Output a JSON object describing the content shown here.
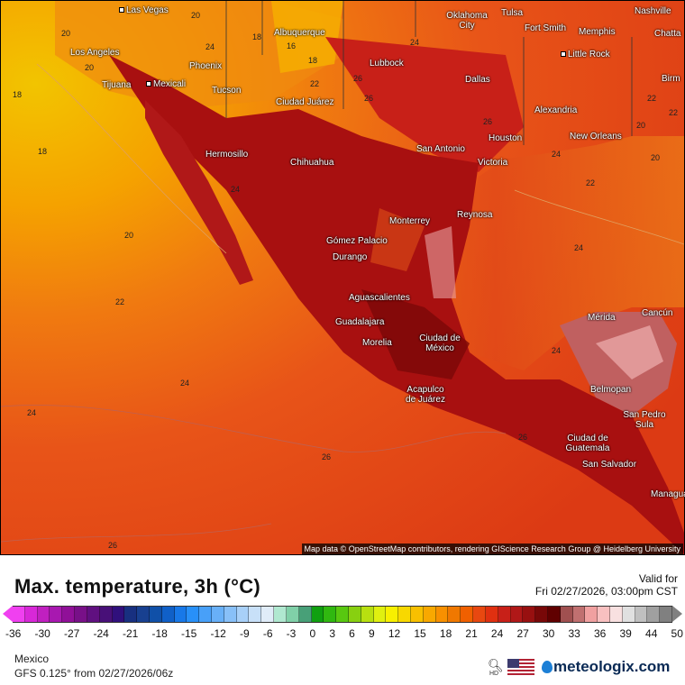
{
  "map": {
    "attribution": "Map data © OpenStreetMap contributors, rendering GIScience Research Group @ Heidelberg University",
    "cities": [
      "Las Vegas",
      "Albuquerque",
      "Oklahoma City",
      "Tulsa",
      "Nashville",
      "Chatta",
      "Fort Smith",
      "Memphis",
      "Los Angeles",
      "Phoenix",
      "Lubbock",
      "Little Rock",
      "Birm",
      "Tijuana",
      "Mexicali",
      "Tucson",
      "Dallas",
      "Ciudad Juárez",
      "Alexandria",
      "Hermosillo",
      "Chihuahua",
      "San Antonio",
      "Houston",
      "New Orleans",
      "Victoria",
      "Monterrey",
      "Reynosa",
      "Gómez Palacio",
      "Durango",
      "Aguascalientes",
      "Mérida",
      "Cancún",
      "Guadalajara",
      "Morelia",
      "Ciudad de México",
      "Belmopan",
      "Acapulco de Juárez",
      "San Pedro Sula",
      "Ciudad de Guatemala",
      "San Salvador",
      "Managua"
    ],
    "isotherm_labels": [
      "20",
      "18",
      "16",
      "18",
      "20",
      "24",
      "26",
      "22",
      "24",
      "20",
      "18",
      "18",
      "20",
      "22",
      "24",
      "22",
      "20",
      "24",
      "24",
      "26",
      "26",
      "26",
      "22",
      "24",
      "20",
      "22",
      "24",
      "24",
      "26",
      "26"
    ]
  },
  "legend": {
    "title": "Max. temperature, 3h (°C)",
    "valid_label": "Valid for",
    "valid_time": "Fri 02/27/2026, 03:00pm CST",
    "ticks": [
      "-36",
      "-30",
      "-27",
      "-24",
      "-21",
      "-18",
      "-15",
      "-12",
      "-9",
      "-6",
      "-3",
      "0",
      "3",
      "6",
      "9",
      "12",
      "15",
      "18",
      "21",
      "24",
      "27",
      "30",
      "33",
      "36",
      "39",
      "44",
      "50"
    ],
    "colors": [
      "#f040f0",
      "#d828d8",
      "#c020c0",
      "#a818b0",
      "#901098",
      "#781088",
      "#601080",
      "#481078",
      "#30107c",
      "#183080",
      "#184090",
      "#1050a8",
      "#1060c8",
      "#1878e8",
      "#2890f8",
      "#48a0f8",
      "#68b0f8",
      "#88c0f8",
      "#a8d0f8",
      "#c8e0f8",
      "#e0ecf8",
      "#b0e8d0",
      "#80d0a8",
      "#48a078",
      "#10a010",
      "#30b810",
      "#58c810",
      "#88d010",
      "#b8e010",
      "#e0f010",
      "#f8f000",
      "#f8d800",
      "#f8c000",
      "#f8a800",
      "#f89000",
      "#f07800",
      "#f06000",
      "#e84810",
      "#e03010",
      "#c82018",
      "#b01818",
      "#981010",
      "#780808",
      "#600000",
      "#a05050",
      "#c07070",
      "#f0a0a0",
      "#f8c0c0",
      "#f8e0e0",
      "#e0e0e0",
      "#c0c0c0",
      "#a0a0a0",
      "#808080"
    ],
    "arrow_low": "#f040f0",
    "arrow_high": "#808080"
  },
  "footer": {
    "region": "Mexico",
    "model": "GFS 0.125° from  02/27/2026/06z",
    "hd_label": "HD",
    "brand": "meteologix.com"
  }
}
